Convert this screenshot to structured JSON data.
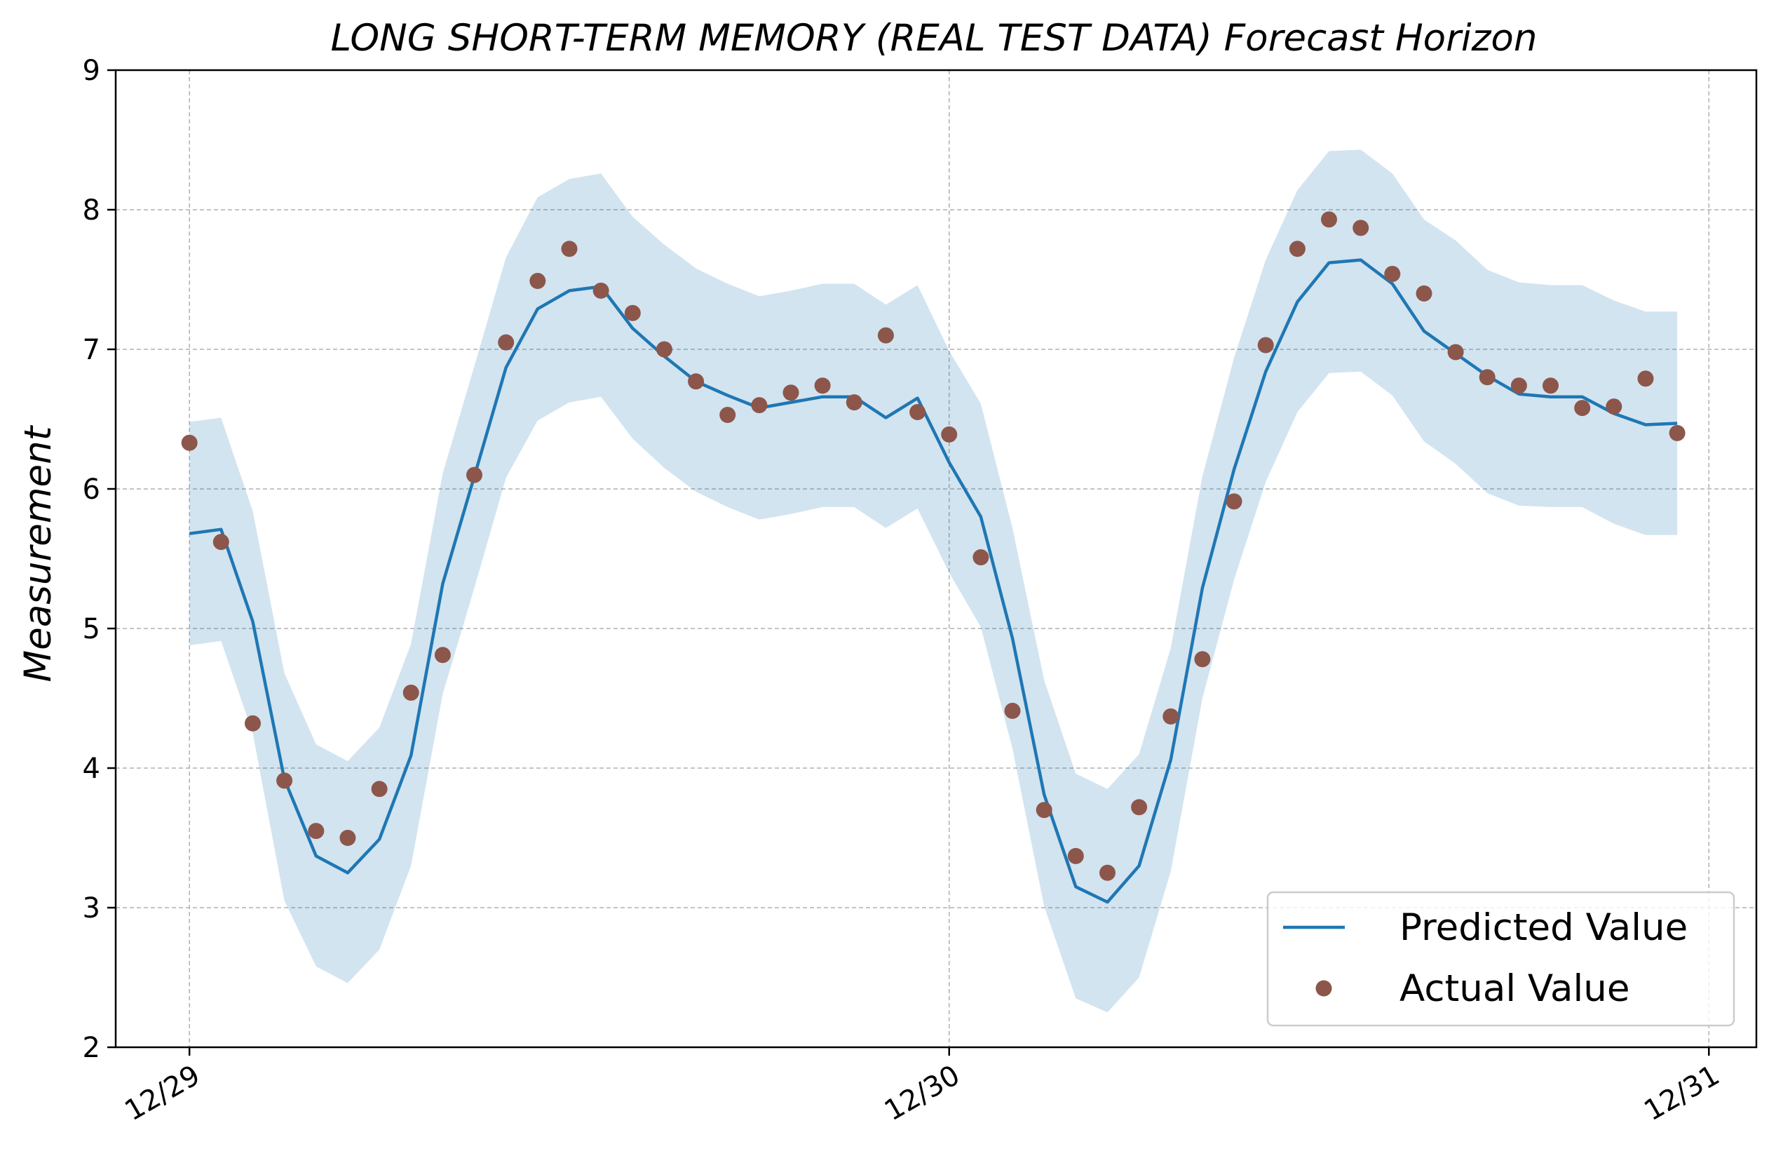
{
  "chart_data": {
    "type": "line",
    "title": "LONG SHORT-TERM MEMORY (REAL TEST DATA) Forecast Horizon",
    "xlabel": "",
    "ylabel": "Measurement",
    "ylim": [
      2,
      9
    ],
    "yticks": [
      "2",
      "3",
      "4",
      "5",
      "6",
      "7",
      "8",
      "9"
    ],
    "xticks": [
      "12/29",
      "12/30",
      "12/31"
    ],
    "xlim_hours": [
      -2.33,
      49.5
    ],
    "grid": true,
    "legend_position": "lower-right",
    "colors": {
      "predicted": "#1f77b4",
      "band": "#1f77b4",
      "actual": "#8c564b"
    },
    "x_hours": [
      0,
      1,
      2,
      3,
      4,
      5,
      6,
      7,
      8,
      9,
      10,
      11,
      12,
      13,
      14,
      15,
      16,
      17,
      18,
      19,
      20,
      21,
      22,
      23,
      24,
      25,
      26,
      27,
      28,
      29,
      30,
      31,
      32,
      33,
      34,
      35,
      36,
      37,
      38,
      39,
      40,
      41,
      42,
      43,
      44,
      45,
      46,
      47
    ],
    "series": [
      {
        "name": "Predicted Value",
        "kind": "line",
        "values": [
          5.68,
          5.71,
          5.05,
          3.92,
          3.37,
          3.25,
          3.49,
          4.09,
          5.32,
          6.09,
          6.87,
          7.29,
          7.42,
          7.45,
          7.15,
          6.95,
          6.77,
          6.67,
          6.58,
          6.62,
          6.66,
          6.66,
          6.51,
          6.65,
          6.19,
          5.8,
          4.93,
          3.81,
          3.15,
          3.04,
          3.3,
          4.06,
          5.29,
          6.14,
          6.84,
          7.34,
          7.62,
          7.64,
          7.47,
          7.13,
          6.97,
          6.81,
          6.68,
          6.66,
          6.66,
          6.54,
          6.46,
          6.47
        ],
        "lower": [
          4.88,
          4.91,
          4.25,
          3.05,
          2.58,
          2.46,
          2.7,
          3.3,
          4.53,
          5.29,
          6.08,
          6.49,
          6.62,
          6.66,
          6.36,
          6.15,
          5.98,
          5.87,
          5.78,
          5.82,
          5.87,
          5.87,
          5.72,
          5.86,
          5.4,
          5.01,
          4.14,
          3.01,
          2.35,
          2.25,
          2.5,
          3.26,
          4.5,
          5.35,
          6.05,
          6.55,
          6.83,
          6.84,
          6.67,
          6.34,
          6.18,
          5.97,
          5.88,
          5.87,
          5.87,
          5.75,
          5.67,
          5.67
        ],
        "upper": [
          6.48,
          6.51,
          5.84,
          4.68,
          4.17,
          4.05,
          4.29,
          4.89,
          6.11,
          6.88,
          7.66,
          8.09,
          8.22,
          8.26,
          7.95,
          7.75,
          7.58,
          7.47,
          7.38,
          7.42,
          7.47,
          7.47,
          7.32,
          7.46,
          6.99,
          6.61,
          5.72,
          4.63,
          3.96,
          3.85,
          4.1,
          4.86,
          6.09,
          6.94,
          7.64,
          8.14,
          8.42,
          8.43,
          8.26,
          7.93,
          7.78,
          7.57,
          7.48,
          7.46,
          7.46,
          7.35,
          7.27,
          7.27
        ]
      },
      {
        "name": "Actual Value",
        "kind": "scatter",
        "values": [
          6.33,
          5.62,
          4.32,
          3.91,
          3.55,
          3.5,
          3.85,
          4.54,
          4.81,
          6.1,
          7.05,
          7.49,
          7.72,
          7.42,
          7.26,
          7.0,
          6.77,
          6.53,
          6.6,
          6.69,
          6.74,
          6.62,
          7.1,
          6.55,
          6.39,
          5.51,
          4.41,
          3.7,
          3.37,
          3.25,
          3.72,
          4.37,
          4.78,
          5.91,
          7.03,
          7.72,
          7.93,
          7.87,
          7.54,
          7.4,
          6.98,
          6.8,
          6.74,
          6.74,
          6.58,
          6.59,
          6.79,
          6.4
        ]
      }
    ]
  }
}
